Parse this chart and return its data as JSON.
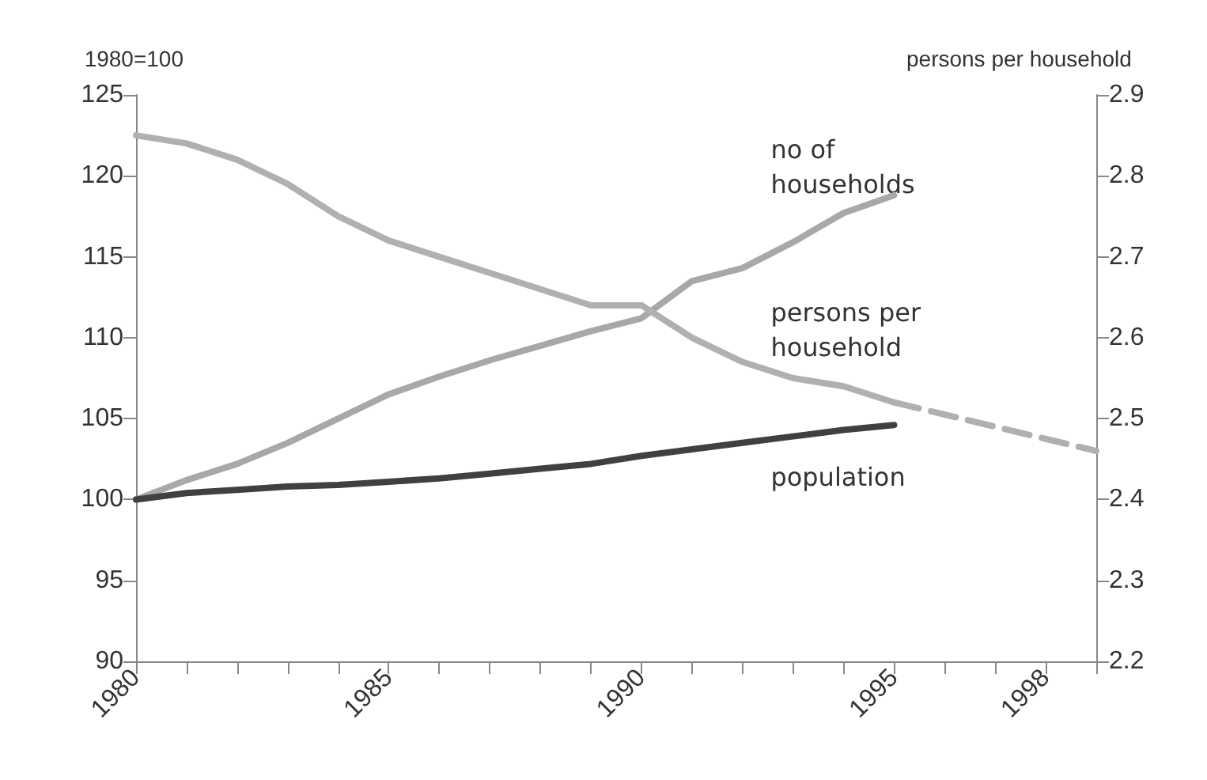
{
  "chart_data": {
    "type": "line",
    "ylabel": "1980=100",
    "y2label": "persons per household",
    "x": [
      1980,
      1981,
      1982,
      1983,
      1984,
      1985,
      1986,
      1987,
      1988,
      1989,
      1990,
      1991,
      1992,
      1993,
      1994,
      1995
    ],
    "xlim": [
      1980,
      1999
    ],
    "xticks": [
      1980,
      {
        "value": 1981,
        "label": null
      },
      {
        "value": 1982,
        "label": null
      },
      {
        "value": 1983,
        "label": null
      },
      {
        "value": 1984,
        "label": null
      },
      1985,
      {
        "value": 1986,
        "label": null
      },
      {
        "value": 1987,
        "label": null
      },
      {
        "value": 1988,
        "label": null
      },
      {
        "value": 1989,
        "label": null
      },
      1990,
      {
        "value": 1991,
        "label": null
      },
      {
        "value": 1992,
        "label": null
      },
      {
        "value": 1993,
        "label": null
      },
      {
        "value": 1994,
        "label": null
      },
      1995,
      {
        "value": 1996,
        "label": null
      },
      {
        "value": 1997,
        "label": null
      },
      1998,
      {
        "value": 1999,
        "label": null
      }
    ],
    "ylim": [
      90,
      125
    ],
    "yticks": [
      90,
      95,
      100,
      105,
      110,
      115,
      120,
      125
    ],
    "y2lim": [
      2.2,
      2.9
    ],
    "y2ticks": [
      2.2,
      2.3,
      2.4,
      2.5,
      2.6,
      2.7,
      2.8,
      2.9
    ],
    "series": [
      {
        "name": "no of households",
        "color": "#a8a8a8",
        "values": [
          100,
          101.2,
          102.2,
          103.5,
          105,
          106.5,
          107.6,
          108.6,
          109.5,
          110.4,
          111.2,
          113.5,
          114.3,
          115.9,
          117.7,
          118.8
        ]
      },
      {
        "name": "persons per household",
        "color": "#b0b0b0",
        "axis": "y2",
        "values": [
          2.85,
          2.84,
          2.82,
          2.79,
          2.75,
          2.72,
          2.7,
          2.68,
          2.66,
          2.64,
          2.64,
          2.6,
          2.57,
          2.55,
          2.54,
          2.52
        ]
      },
      {
        "type": "line",
        "color": "#b0b0b0",
        "axis": "y2",
        "line_style": "dashed",
        "x": [
          1995,
          1999
        ],
        "values": [
          2.52,
          2.46
        ]
      },
      {
        "name": "population",
        "color": "#404040",
        "values": [
          100,
          100.4,
          100.6,
          100.8,
          100.9,
          101.1,
          101.3,
          101.6,
          101.9,
          102.2,
          102.7,
          103.1,
          103.5,
          103.9,
          104.3,
          104.6
        ]
      }
    ],
    "grid": false,
    "legend": false,
    "marker": "none",
    "line_style": "solid"
  }
}
